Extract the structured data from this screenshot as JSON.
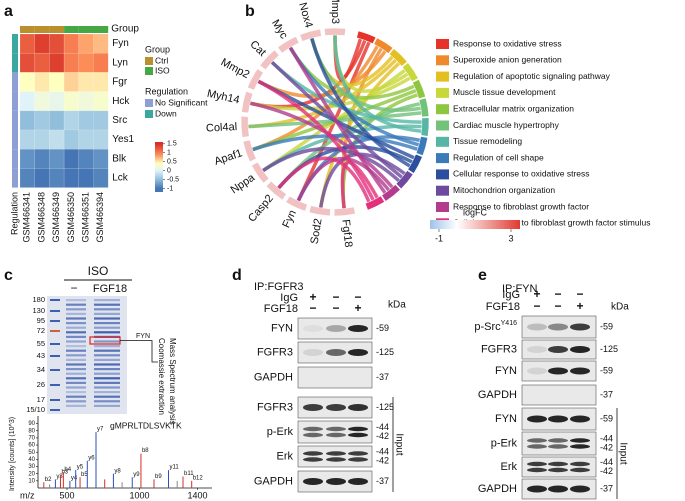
{
  "panel_a": {
    "label": "a",
    "group_title": "Group",
    "groups": [
      {
        "name": "Ctrl",
        "color": "#b8902e"
      },
      {
        "name": "ISO",
        "color": "#45a845"
      }
    ],
    "regulation_title": "Regulation",
    "regulations": [
      {
        "name": "No Significant",
        "color": "#8e9fd6"
      },
      {
        "name": "Down",
        "color": "#3aa89e"
      }
    ],
    "samples": [
      "GSM466341",
      "GSM466348",
      "GSM466349",
      "GSM466350",
      "GSM466351",
      "GSM466394"
    ],
    "sample_groups": [
      0,
      0,
      0,
      1,
      1,
      1
    ],
    "genes": [
      "Fyn",
      "Lyn",
      "Fgr",
      "Hck",
      "Src",
      "Yes1",
      "Blk",
      "Lck"
    ],
    "gene_regulation": [
      1,
      1,
      0,
      0,
      0,
      0,
      0,
      0
    ],
    "heatmap": {
      "type": "heatmap",
      "values": [
        [
          1.2,
          1.4,
          1.3,
          1.0,
          0.8,
          0.7
        ],
        [
          1.3,
          1.2,
          1.4,
          1.0,
          0.9,
          1.0
        ],
        [
          0.4,
          0.5,
          0.4,
          0.6,
          0.5,
          0.5
        ],
        [
          0.0,
          0.2,
          0.1,
          0.3,
          0.2,
          0.3
        ],
        [
          -0.5,
          -0.4,
          -0.5,
          -0.3,
          -0.4,
          -0.4
        ],
        [
          -0.3,
          -0.3,
          -0.2,
          -0.4,
          -0.3,
          -0.3
        ],
        [
          -0.8,
          -0.9,
          -0.8,
          -1.1,
          -0.9,
          -0.8
        ],
        [
          -0.9,
          -1.0,
          -0.9,
          -1.2,
          -1.0,
          -0.9
        ]
      ],
      "colorbar": {
        "lim": [
          -1.2,
          1.6
        ],
        "ticks": [
          1.5,
          1,
          0.5,
          0,
          -0.5,
          -1
        ]
      }
    }
  },
  "panel_b": {
    "label": "b",
    "genes": [
      "Mmp3",
      "Nox4",
      "Myc",
      "Cat",
      "Mmp2",
      "Myh14",
      "Col4al",
      "Apaf1",
      "Nppa",
      "Casp2",
      "Fyn",
      "Sod2",
      "Fgf18"
    ],
    "terms": [
      {
        "name": "Response to oxidative stress",
        "color": "#e5332a"
      },
      {
        "name": "Superoxide anion generation",
        "color": "#ef8a2c"
      },
      {
        "name": "Regulation of apoptotic signaling pathway",
        "color": "#e3bf22"
      },
      {
        "name": "Muscle tissue development",
        "color": "#c8d73a"
      },
      {
        "name": "Extracellular matrix organization",
        "color": "#8ec63f"
      },
      {
        "name": "Cardiac muscle hypertrophy",
        "color": "#72c27a"
      },
      {
        "name": "Tissue remodeling",
        "color": "#55b6a4"
      },
      {
        "name": "Regulation of cell shape",
        "color": "#3a7abb"
      },
      {
        "name": "Cellular response to oxidative stress",
        "color": "#2b4f9e"
      },
      {
        "name": "Mitochondrion organization",
        "color": "#6e4a9e"
      },
      {
        "name": "Response to fibroblast growth factor",
        "color": "#b23b8e"
      },
      {
        "name": "Cellular response to fibroblast growth factor stimulus",
        "color": "#e2307c"
      }
    ],
    "logfc": {
      "title": "logFC",
      "lim": [
        -1.5,
        3.5
      ],
      "ticks": [
        -1,
        3
      ]
    }
  },
  "panel_c": {
    "label": "c",
    "header": "ISO",
    "lanes": [
      "−",
      "FGF18"
    ],
    "ladder": [
      "180",
      "130",
      "95",
      "72",
      "55",
      "43",
      "34",
      "26",
      "17",
      "15/10"
    ],
    "band_label": "FYN",
    "process": [
      "Coomassie extraction",
      "Mass Spectrum analysis"
    ],
    "spectrum": {
      "type": "spectrum",
      "peptide": "gMPRLTDLSVKTK",
      "xlabel": "m/z",
      "ylabel": "Intensity [counts] (10^3)",
      "xlim": [
        300,
        1500
      ],
      "ylim": [
        0,
        95
      ],
      "xticks": [
        500,
        1000,
        1400
      ],
      "yticks": [
        10,
        20,
        30,
        40,
        50,
        60,
        70,
        80,
        90
      ],
      "peaks": {
        "x": [
          340,
          380,
          420,
          455,
          475,
          520,
          560,
          590,
          640,
          700,
          760,
          820,
          880,
          950,
          1010,
          1100,
          1200,
          1260,
          1300,
          1360
        ],
        "values": [
          8,
          5,
          12,
          18,
          22,
          10,
          25,
          15,
          38,
          78,
          12,
          20,
          8,
          15,
          48,
          12,
          25,
          10,
          16,
          10
        ],
        "colors": [
          "#d62c2c",
          "#888888",
          "#2b4fc0",
          "#d62c2c",
          "#d62c2c",
          "#2b4fc0",
          "#2b4fc0",
          "#d62c2c",
          "#2b4fc0",
          "#2b4fc0",
          "#d62c2c",
          "#2b4fc0",
          "#888888",
          "#2b4fc0",
          "#d62c2c",
          "#d62c2c",
          "#2b4fc0",
          "#888888",
          "#d62c2c",
          "#d62c2c"
        ],
        "labels": [
          "b2",
          null,
          "y3",
          "b3",
          "b4",
          "y4",
          "y5",
          "b5",
          "y6",
          "y7",
          null,
          "y8",
          null,
          "y9",
          "b8",
          "b9",
          "y11",
          null,
          "b11",
          "b12"
        ]
      }
    }
  },
  "panel_d": {
    "label": "d",
    "ip": "IP:FGFR3",
    "conditions": [
      {
        "name": "IgG",
        "signs": [
          "+",
          "−",
          "−"
        ]
      },
      {
        "name": "FGF18",
        "signs": [
          "−",
          "−",
          "+"
        ]
      }
    ],
    "kda": "kDa",
    "ip_blots": [
      {
        "name": "FYN",
        "mw": [
          "-59"
        ]
      },
      {
        "name": "FGFR3",
        "mw": [
          "-125"
        ]
      },
      {
        "name": "GAPDH",
        "mw": [
          "-37"
        ]
      }
    ],
    "input_blots": [
      {
        "name": "FGFR3",
        "mw": [
          "-125"
        ]
      },
      {
        "name": "p-Erk",
        "mw": [
          "-44",
          "-42"
        ]
      },
      {
        "name": "Erk",
        "mw": [
          "-44",
          "-42"
        ]
      },
      {
        "name": "GAPDH",
        "mw": [
          "-37"
        ]
      }
    ],
    "input": "Input"
  },
  "panel_e": {
    "label": "e",
    "ip": "IP:FYN",
    "conditions": [
      {
        "name": "IgG",
        "signs": [
          "+",
          "−",
          "−"
        ]
      },
      {
        "name": "FGF18",
        "signs": [
          "−",
          "−",
          "+"
        ]
      }
    ],
    "kda": "kDa",
    "ip_blots": [
      {
        "name": "p-Src",
        "sup": "Y416",
        "mw": [
          "-59"
        ]
      },
      {
        "name": "FGFR3",
        "mw": [
          "-125"
        ]
      },
      {
        "name": "FYN",
        "mw": [
          "-59"
        ]
      },
      {
        "name": "GAPDH",
        "mw": [
          "-37"
        ]
      }
    ],
    "input_blots": [
      {
        "name": "FYN",
        "mw": [
          "-59"
        ]
      },
      {
        "name": "p-Erk",
        "mw": [
          "-44",
          "-42"
        ]
      },
      {
        "name": "Erk",
        "mw": [
          "-44",
          "-42"
        ]
      },
      {
        "name": "GAPDH",
        "mw": [
          "-37"
        ]
      }
    ],
    "input": "Input"
  }
}
